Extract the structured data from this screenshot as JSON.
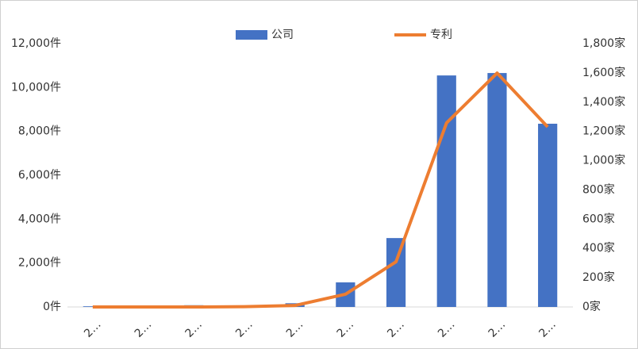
{
  "chart_data": {
    "type": "bar_line",
    "categories": [
      "2…",
      "2…",
      "2…",
      "2…",
      "2…",
      "2…",
      "2…",
      "2…",
      "2…",
      "2…"
    ],
    "series": [
      {
        "name": "公司",
        "type": "bar",
        "color": "#4472c4",
        "values": [
          30,
          0,
          80,
          0,
          170,
          1120,
          3140,
          10550,
          10660,
          8350
        ]
      },
      {
        "name": "专利",
        "type": "line",
        "axis": "y2",
        "color": "#ed7d31",
        "values": [
          0,
          0,
          0,
          2,
          10,
          87,
          309,
          1258,
          1599,
          1231
        ]
      }
    ],
    "ylim": [
      0,
      12000
    ],
    "yticks": [
      {
        "value": 0,
        "label": "0件"
      },
      {
        "value": 2000,
        "label": "2,000件"
      },
      {
        "value": 4000,
        "label": "4,000件"
      },
      {
        "value": 6000,
        "label": "6,000件"
      },
      {
        "value": 8000,
        "label": "8,000件"
      },
      {
        "value": 10000,
        "label": "10,000件"
      },
      {
        "value": 12000,
        "label": "12,000件"
      }
    ],
    "y2lim": [
      0,
      1800
    ],
    "y2ticks": [
      {
        "value": 0,
        "label": "0家"
      },
      {
        "value": 200,
        "label": "200家"
      },
      {
        "value": 400,
        "label": "400家"
      },
      {
        "value": 600,
        "label": "600家"
      },
      {
        "value": 800,
        "label": "800家"
      },
      {
        "value": 1000,
        "label": "1,000家"
      },
      {
        "value": 1200,
        "label": "1,200家"
      },
      {
        "value": 1400,
        "label": "1,400家"
      },
      {
        "value": 1600,
        "label": "1,600家"
      },
      {
        "value": 1800,
        "label": "1,800家"
      }
    ],
    "grid": false
  }
}
